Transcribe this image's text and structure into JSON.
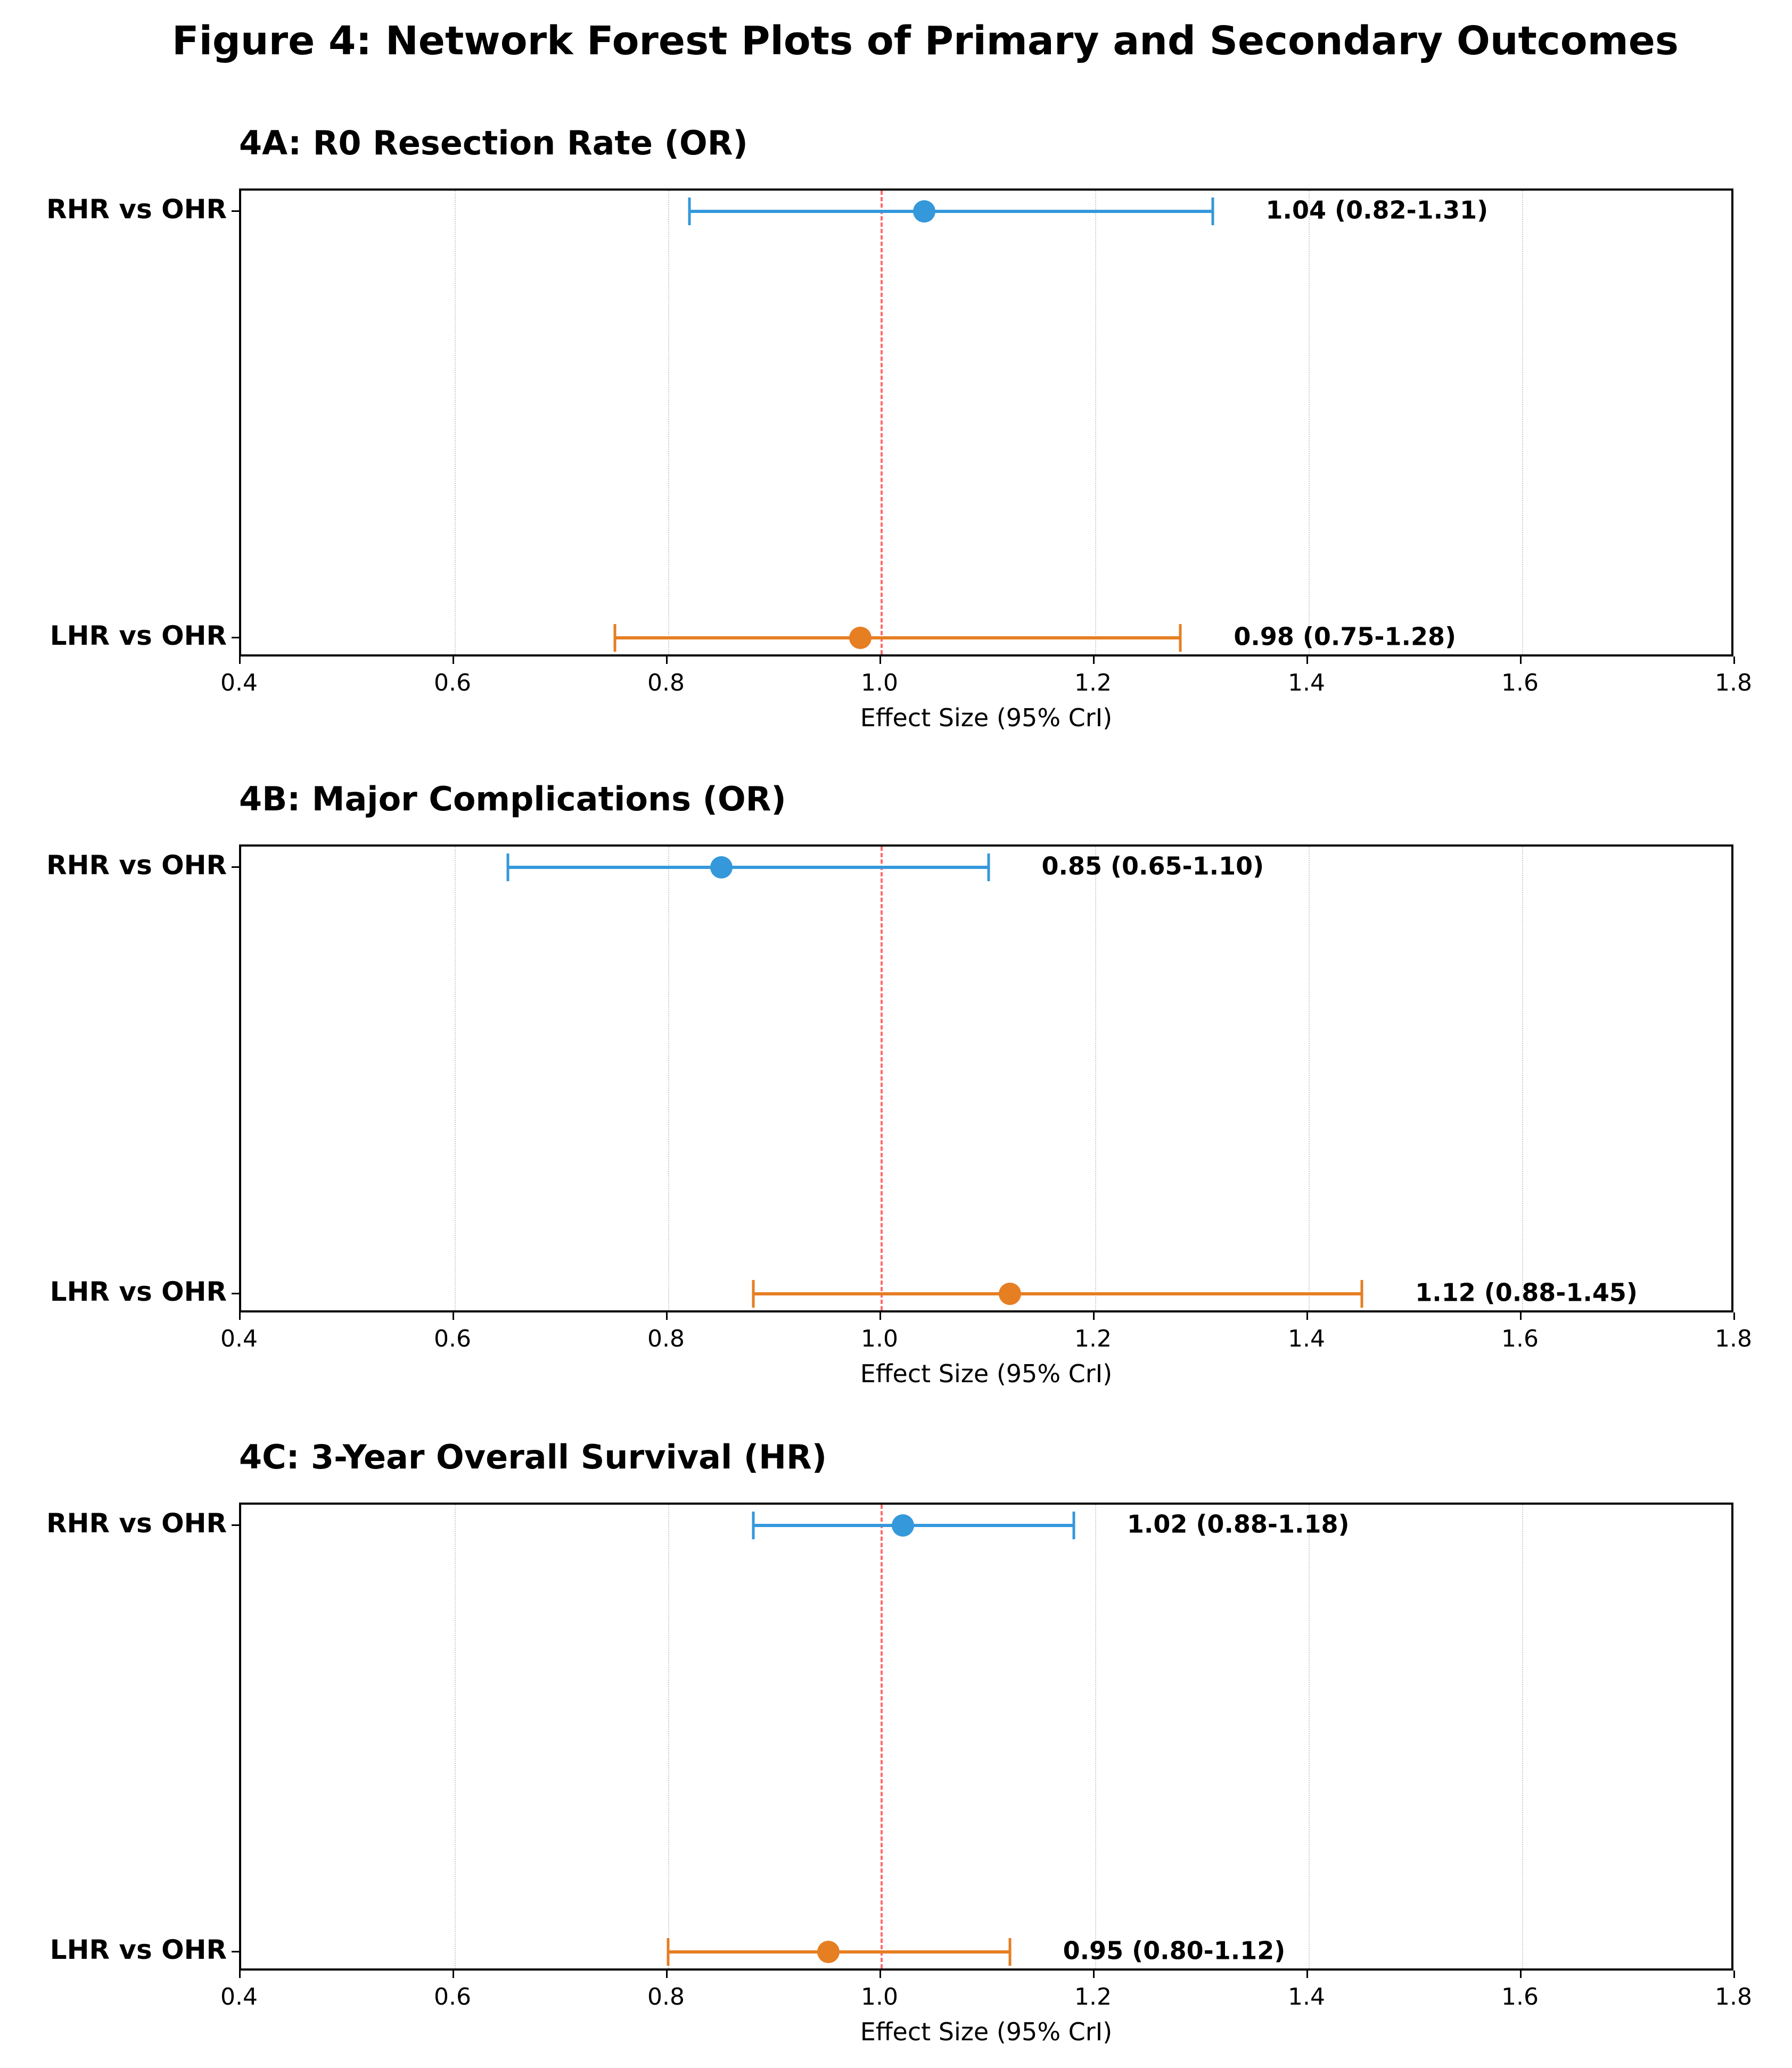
{
  "figure": {
    "title": "Figure 4: Network Forest Plots of Primary and Secondary Outcomes"
  },
  "colors": {
    "rhr": "#3498DB",
    "lhr": "#E67E22",
    "reference_line": "#FF6B6B",
    "grid": "#CCCCCC"
  },
  "axis": {
    "xlabel": "Effect Size (95% CrI)",
    "xlim": [
      0.4,
      1.8
    ],
    "ticks": [
      "0.4",
      "0.6",
      "0.8",
      "1.0",
      "1.2",
      "1.4",
      "1.6",
      "1.8"
    ]
  },
  "panels": [
    {
      "title": "4A: R0 Resection Rate (OR)",
      "rows": [
        {
          "label": "RHR vs OHR",
          "est": 1.04,
          "lo": 0.82,
          "hi": 1.31,
          "text": "1.04 (0.82-1.31)"
        },
        {
          "label": "LHR vs OHR",
          "est": 0.98,
          "lo": 0.75,
          "hi": 1.28,
          "text": "0.98 (0.75-1.28)"
        }
      ]
    },
    {
      "title": "4B: Major Complications (OR)",
      "rows": [
        {
          "label": "RHR vs OHR",
          "est": 0.85,
          "lo": 0.65,
          "hi": 1.1,
          "text": "0.85 (0.65-1.10)"
        },
        {
          "label": "LHR vs OHR",
          "est": 1.12,
          "lo": 0.88,
          "hi": 1.45,
          "text": "1.12 (0.88-1.45)"
        }
      ]
    },
    {
      "title": "4C: 3-Year Overall Survival (HR)",
      "rows": [
        {
          "label": "RHR vs OHR",
          "est": 1.02,
          "lo": 0.88,
          "hi": 1.18,
          "text": "1.02 (0.88-1.18)"
        },
        {
          "label": "LHR vs OHR",
          "est": 0.95,
          "lo": 0.8,
          "hi": 1.12,
          "text": "0.95 (0.80-1.12)"
        }
      ]
    }
  ],
  "chart_data": [
    {
      "type": "scatter",
      "subtype": "forest",
      "title": "4A: R0 Resection Rate (OR)",
      "xlabel": "Effect Size (95% CrI)",
      "ylabel": "",
      "xlim": [
        0.4,
        1.8
      ],
      "xticks": [
        0.4,
        0.6,
        0.8,
        1.0,
        1.2,
        1.4,
        1.6,
        1.8
      ],
      "reference_line": 1.0,
      "grid": "x, dotted",
      "categories": [
        "RHR vs OHR",
        "LHR vs OHR"
      ],
      "series": [
        {
          "name": "Estimate",
          "values": [
            1.04,
            0.98
          ]
        },
        {
          "name": "Lower 95% CrI",
          "values": [
            0.82,
            0.75
          ]
        },
        {
          "name": "Upper 95% CrI",
          "values": [
            1.31,
            1.28
          ]
        }
      ],
      "annotations": [
        "1.04 (0.82-1.31)",
        "0.98 (0.75-1.28)"
      ]
    },
    {
      "type": "scatter",
      "subtype": "forest",
      "title": "4B: Major Complications (OR)",
      "xlabel": "Effect Size (95% CrI)",
      "ylabel": "",
      "xlim": [
        0.4,
        1.8
      ],
      "xticks": [
        0.4,
        0.6,
        0.8,
        1.0,
        1.2,
        1.4,
        1.6,
        1.8
      ],
      "reference_line": 1.0,
      "grid": "x, dotted",
      "categories": [
        "RHR vs OHR",
        "LHR vs OHR"
      ],
      "series": [
        {
          "name": "Estimate",
          "values": [
            0.85,
            1.12
          ]
        },
        {
          "name": "Lower 95% CrI",
          "values": [
            0.65,
            0.88
          ]
        },
        {
          "name": "Upper 95% CrI",
          "values": [
            1.1,
            1.45
          ]
        }
      ],
      "annotations": [
        "0.85 (0.65-1.10)",
        "1.12 (0.88-1.45)"
      ]
    },
    {
      "type": "scatter",
      "subtype": "forest",
      "title": "4C: 3-Year Overall Survival (HR)",
      "xlabel": "Effect Size (95% CrI)",
      "ylabel": "",
      "xlim": [
        0.4,
        1.8
      ],
      "xticks": [
        0.4,
        0.6,
        0.8,
        1.0,
        1.2,
        1.4,
        1.6,
        1.8
      ],
      "reference_line": 1.0,
      "grid": "x, dotted",
      "categories": [
        "RHR vs OHR",
        "LHR vs OHR"
      ],
      "series": [
        {
          "name": "Estimate",
          "values": [
            1.02,
            0.95
          ]
        },
        {
          "name": "Lower 95% CrI",
          "values": [
            0.88,
            0.8
          ]
        },
        {
          "name": "Upper 95% CrI",
          "values": [
            1.18,
            1.12
          ]
        }
      ],
      "annotations": [
        "1.02 (0.88-1.18)",
        "0.95 (0.80-1.12)"
      ]
    }
  ]
}
